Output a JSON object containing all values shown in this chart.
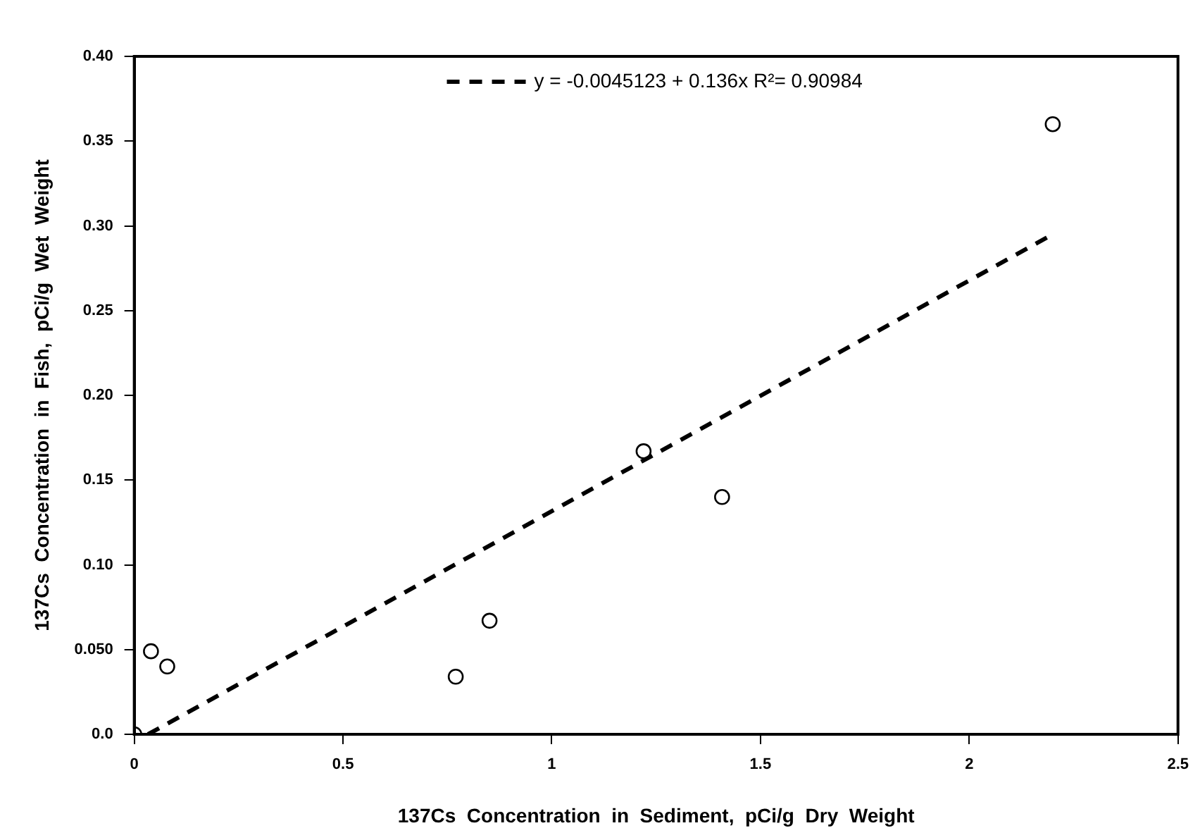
{
  "chart_data": {
    "type": "scatter",
    "xlabel": "137Cs  Concentration  in  Sediment,  pCi/g  Dry  Weight",
    "ylabel": "137Cs  Concentration  in  Fish,  pCi/g  Wet  Weight",
    "xlim": [
      0,
      2.5
    ],
    "xticks": [
      0,
      0.5,
      1,
      1.5,
      2,
      2.5
    ],
    "ylim": [
      0,
      0.4
    ],
    "yticks": [
      {
        "value": 0,
        "label": "0.0"
      },
      {
        "value": 0.05,
        "label": "0.050"
      },
      {
        "value": 0.1,
        "label": "0.10"
      },
      {
        "value": 0.15,
        "label": "0.15"
      },
      {
        "value": 0.2,
        "label": "0.20"
      },
      {
        "value": 0.25,
        "label": "0.25"
      },
      {
        "value": 0.3,
        "label": "0.30"
      },
      {
        "value": 0.35,
        "label": "0.35"
      },
      {
        "value": 0.4,
        "label": "0.40"
      }
    ],
    "grid": false,
    "legend": "top",
    "marker": "circle",
    "series": [
      {
        "color": "#000000",
        "x": [
          0,
          0.04,
          0.079,
          0.77,
          0.851,
          1.22,
          1.408,
          2.2
        ],
        "values": [
          0,
          0.049,
          0.04,
          0.034,
          0.067,
          0.167,
          0.14,
          0.36
        ]
      },
      {
        "type": "line",
        "name": "y = -0.0045123 + 0.136x R²= 0.90984",
        "color": "#000000",
        "line_style": "dashed",
        "marker": "none",
        "x": [
          0.033,
          2.2
        ],
        "values": [
          0,
          0.295
        ]
      }
    ]
  }
}
